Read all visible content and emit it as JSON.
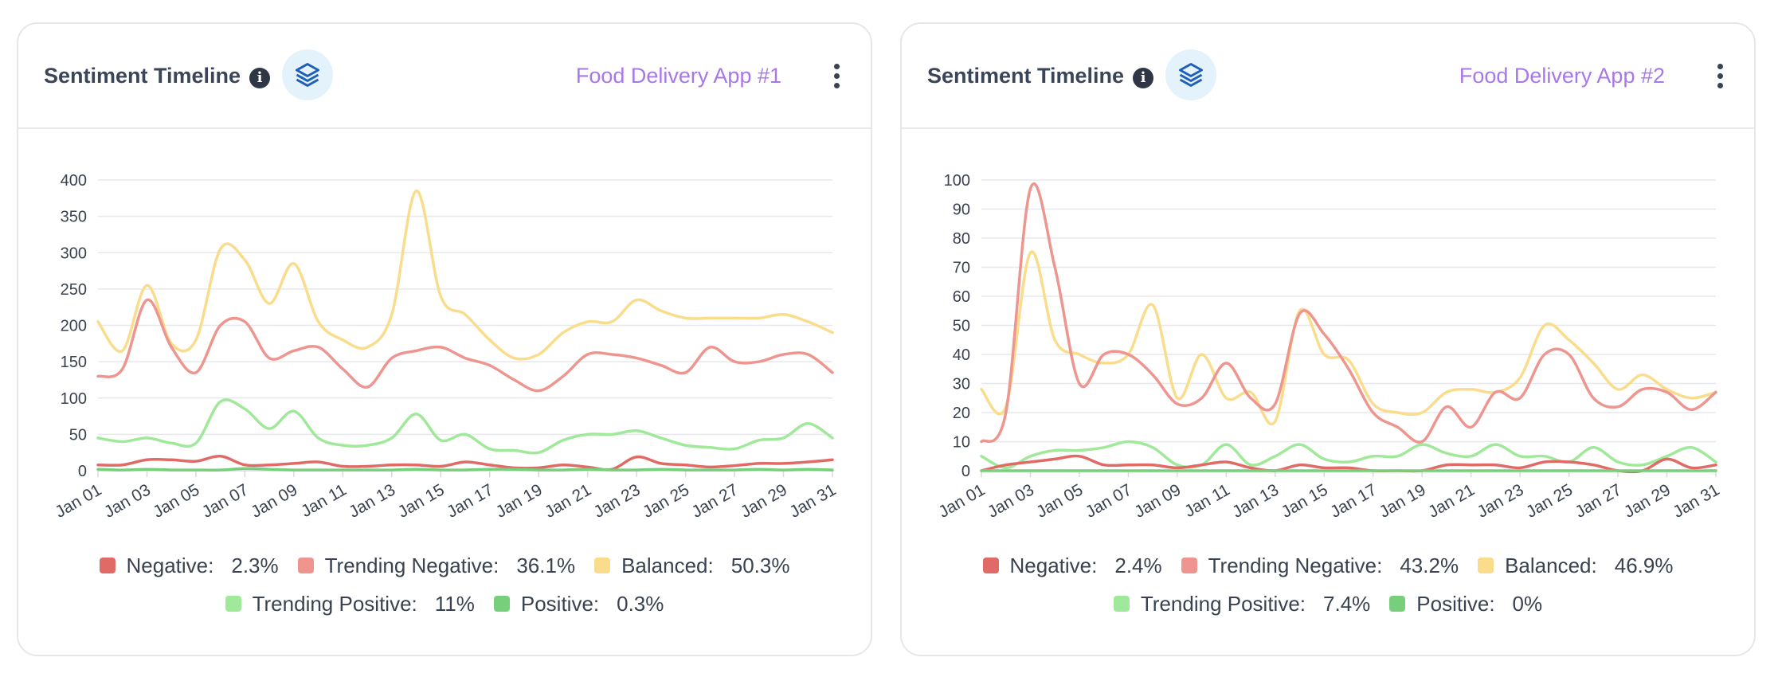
{
  "cards": [
    {
      "title": "Sentiment Timeline",
      "app_name": "Food Delivery App #1",
      "legend": [
        {
          "name": "Negative:",
          "value": "2.3%",
          "color": "#e06a65"
        },
        {
          "name": "Trending Negative:",
          "value": "36.1%",
          "color": "#ee958f"
        },
        {
          "name": "Balanced:",
          "value": "50.3%",
          "color": "#f9dc8c"
        },
        {
          "name": "Trending Positive:",
          "value": "11%",
          "color": "#a0e89a"
        },
        {
          "name": "Positive:",
          "value": "0.3%",
          "color": "#78cf7b"
        }
      ],
      "chart_data": {
        "type": "line",
        "x": [
          "Jan 01",
          "Jan 02",
          "Jan 03",
          "Jan 04",
          "Jan 05",
          "Jan 06",
          "Jan 07",
          "Jan 08",
          "Jan 09",
          "Jan 10",
          "Jan 11",
          "Jan 12",
          "Jan 13",
          "Jan 14",
          "Jan 15",
          "Jan 16",
          "Jan 17",
          "Jan 18",
          "Jan 19",
          "Jan 20",
          "Jan 21",
          "Jan 22",
          "Jan 23",
          "Jan 24",
          "Jan 25",
          "Jan 26",
          "Jan 27",
          "Jan 28",
          "Jan 29",
          "Jan 30",
          "Jan 31"
        ],
        "x_tick_labels": [
          "Jan 01",
          "Jan 03",
          "Jan 05",
          "Jan 07",
          "Jan 09",
          "Jan 11",
          "Jan 13",
          "Jan 15",
          "Jan 17",
          "Jan 19",
          "Jan 21",
          "Jan 23",
          "Jan 25",
          "Jan 27",
          "Jan 29",
          "Jan 31"
        ],
        "ylim": [
          0,
          400
        ],
        "yticks": [
          0,
          50,
          100,
          150,
          200,
          250,
          300,
          350,
          400
        ],
        "grid": true,
        "series": [
          {
            "name": "Balanced",
            "color": "#f9dc8c",
            "values": [
              205,
              165,
              255,
              175,
              180,
              305,
              290,
              230,
              285,
              205,
              180,
              170,
              215,
              385,
              240,
              215,
              180,
              155,
              160,
              190,
              205,
              205,
              235,
              220,
              210,
              210,
              210,
              210,
              215,
              205,
              190
            ]
          },
          {
            "name": "Trending Negative",
            "color": "#ee958f",
            "values": [
              130,
              140,
              235,
              170,
              135,
              200,
              205,
              155,
              165,
              170,
              140,
              115,
              155,
              165,
              170,
              155,
              145,
              125,
              110,
              130,
              160,
              160,
              155,
              145,
              135,
              170,
              150,
              150,
              160,
              160,
              135
            ]
          },
          {
            "name": "Trending Positive",
            "color": "#a0e89a",
            "values": [
              45,
              40,
              45,
              38,
              38,
              95,
              85,
              58,
              82,
              45,
              35,
              35,
              45,
              78,
              42,
              50,
              30,
              28,
              25,
              42,
              50,
              50,
              55,
              45,
              35,
              32,
              30,
              42,
              45,
              65,
              45
            ]
          },
          {
            "name": "Negative",
            "color": "#e06a65",
            "values": [
              8,
              8,
              15,
              15,
              13,
              20,
              8,
              8,
              10,
              12,
              6,
              6,
              8,
              8,
              6,
              12,
              8,
              4,
              4,
              8,
              5,
              2,
              19,
              10,
              8,
              5,
              7,
              10,
              10,
              12,
              15
            ]
          },
          {
            "name": "Positive",
            "color": "#78cf7b",
            "values": [
              2,
              1,
              2,
              1,
              1,
              1,
              3,
              2,
              1,
              1,
              1,
              1,
              1,
              2,
              1,
              1,
              2,
              2,
              1,
              1,
              2,
              1,
              1,
              2,
              1,
              1,
              1,
              2,
              1,
              2,
              1
            ]
          }
        ]
      }
    },
    {
      "title": "Sentiment Timeline",
      "app_name": "Food Delivery App #2",
      "legend": [
        {
          "name": "Negative:",
          "value": "2.4%",
          "color": "#e06a65"
        },
        {
          "name": "Trending Negative:",
          "value": "43.2%",
          "color": "#ee958f"
        },
        {
          "name": "Balanced:",
          "value": "46.9%",
          "color": "#f9dc8c"
        },
        {
          "name": "Trending Positive:",
          "value": "7.4%",
          "color": "#a0e89a"
        },
        {
          "name": "Positive:",
          "value": "0%",
          "color": "#78cf7b"
        }
      ],
      "chart_data": {
        "type": "line",
        "x": [
          "Jan 01",
          "Jan 02",
          "Jan 03",
          "Jan 04",
          "Jan 05",
          "Jan 06",
          "Jan 07",
          "Jan 08",
          "Jan 09",
          "Jan 10",
          "Jan 11",
          "Jan 12",
          "Jan 13",
          "Jan 14",
          "Jan 15",
          "Jan 16",
          "Jan 17",
          "Jan 18",
          "Jan 19",
          "Jan 20",
          "Jan 21",
          "Jan 22",
          "Jan 23",
          "Jan 24",
          "Jan 25",
          "Jan 26",
          "Jan 27",
          "Jan 28",
          "Jan 29",
          "Jan 30",
          "Jan 31"
        ],
        "x_tick_labels": [
          "Jan 01",
          "Jan 03",
          "Jan 05",
          "Jan 07",
          "Jan 09",
          "Jan 11",
          "Jan 13",
          "Jan 15",
          "Jan 17",
          "Jan 19",
          "Jan 21",
          "Jan 23",
          "Jan 25",
          "Jan 27",
          "Jan 29",
          "Jan 31"
        ],
        "ylim": [
          0,
          100
        ],
        "yticks": [
          0,
          10,
          20,
          30,
          40,
          50,
          60,
          70,
          80,
          90,
          100
        ],
        "grid": true,
        "series": [
          {
            "name": "Balanced",
            "color": "#f9dc8c",
            "values": [
              28,
              22,
              75,
              45,
              40,
              37,
              40,
              57,
              25,
              40,
              25,
              27,
              17,
              55,
              40,
              38,
              23,
              20,
              20,
              27,
              28,
              27,
              32,
              50,
              45,
              37,
              28,
              33,
              28,
              25,
              27
            ]
          },
          {
            "name": "Trending Negative",
            "color": "#ee958f",
            "values": [
              10,
              20,
              97,
              70,
              30,
              40,
              40,
              33,
              23,
              25,
              37,
              25,
              23,
              54,
              47,
              35,
              20,
              15,
              10,
              22,
              15,
              27,
              25,
              40,
              40,
              25,
              22,
              28,
              27,
              21,
              27
            ]
          },
          {
            "name": "Trending Positive",
            "color": "#a0e89a",
            "values": [
              5,
              1,
              5,
              7,
              7,
              8,
              10,
              8,
              2,
              2,
              9,
              2,
              5,
              9,
              4,
              3,
              5,
              5,
              9,
              6,
              5,
              9,
              5,
              5,
              3,
              8,
              3,
              2,
              5,
              8,
              3
            ]
          },
          {
            "name": "Negative",
            "color": "#e06a65",
            "values": [
              0,
              2,
              3,
              4,
              5,
              2,
              2,
              2,
              1,
              2,
              3,
              1,
              0,
              2,
              1,
              1,
              0,
              0,
              0,
              2,
              2,
              2,
              1,
              3,
              3,
              2,
              0,
              0,
              4,
              1,
              2
            ]
          },
          {
            "name": "Positive",
            "color": "#78cf7b",
            "values": [
              0,
              0,
              0,
              0,
              0,
              0,
              0,
              0,
              0,
              0,
              0,
              0,
              0,
              0,
              0,
              0,
              0,
              0,
              0,
              0,
              0,
              0,
              0,
              0,
              0,
              0,
              0,
              0,
              0,
              0,
              0
            ]
          }
        ]
      }
    }
  ]
}
